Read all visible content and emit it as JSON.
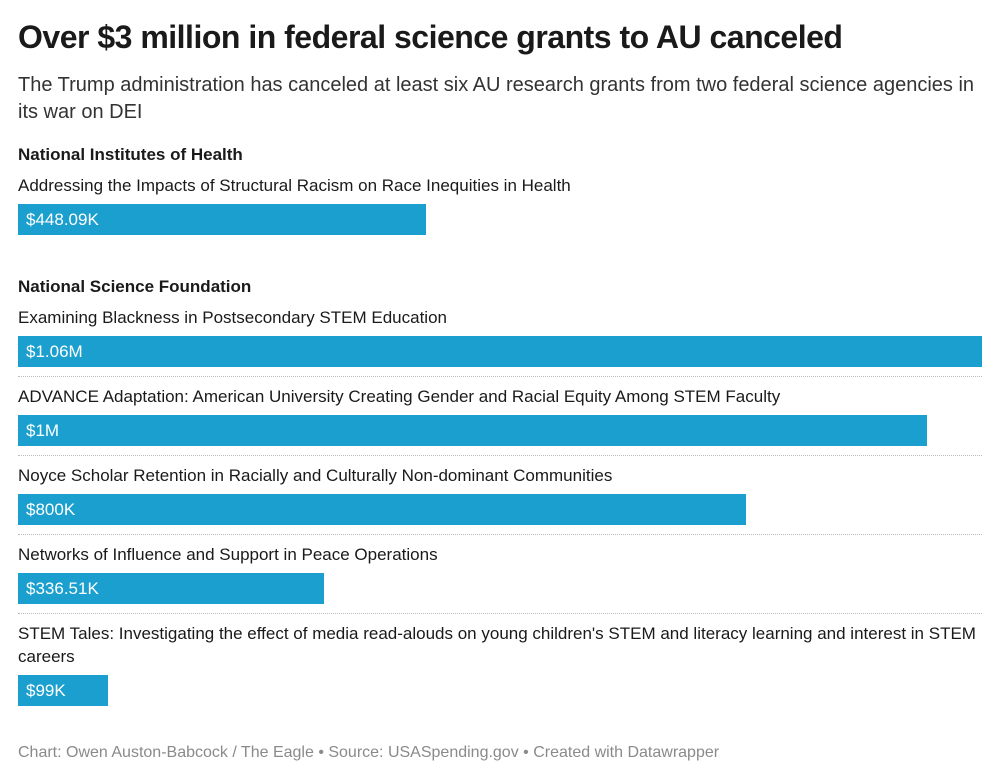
{
  "chart_data": {
    "type": "bar",
    "title": "Over $3 million in federal science grants to AU canceled",
    "subtitle": "The Trump administration has canceled at least six AU research grants from two federal science agencies in its war on DEI",
    "color": "#1a9fce",
    "groups": [
      {
        "name": "National Institutes of Health",
        "categories": [
          "Addressing the Impacts of Structural Racism on Race Inequities in Health"
        ],
        "values": [
          448090
        ],
        "value_labels": [
          "$448.09K"
        ]
      },
      {
        "name": "National Science Foundation",
        "categories": [
          "Examining Blackness in Postsecondary STEM Education",
          "ADVANCE Adaptation: American University Creating Gender and Racial Equity Among STEM Faculty",
          "Noyce Scholar Retention in Racially and Culturally Non-dominant Communities",
          "Networks of Influence and Support in Peace Operations",
          "STEM Tales: Investigating the effect of media read-alouds on young children's STEM and literacy learning and interest in STEM careers"
        ],
        "values": [
          1060000,
          1000000,
          800000,
          336510,
          99000
        ],
        "value_labels": [
          "$1.06M",
          "$1M",
          "$800K",
          "$336.51K",
          "$99K"
        ]
      }
    ],
    "credit": "Chart: Owen Auston-Babcock / The Eagle • Source: USASpending.gov • Created with Datawrapper"
  }
}
